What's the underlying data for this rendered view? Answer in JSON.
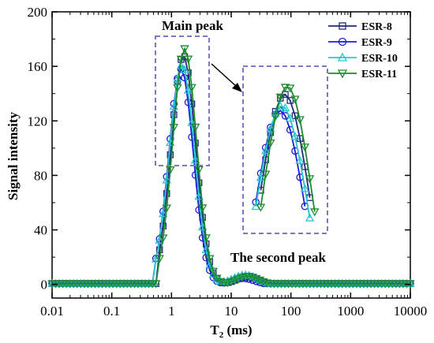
{
  "chart_data": {
    "type": "line",
    "xlabel": "T",
    "xlabel_sub": "2",
    "xlabel_unit": " (ms)",
    "ylabel": "Signal intensity",
    "xscale": "log",
    "xlim": [
      0.01,
      10000
    ],
    "ylim": [
      -10,
      200
    ],
    "xticks": [
      {
        "value": 0.01,
        "label": "0.01"
      },
      {
        "value": 0.1,
        "label": "0.1"
      },
      {
        "value": 1,
        "label": "1"
      },
      {
        "value": 10,
        "label": "10"
      },
      {
        "value": 100,
        "label": "100"
      },
      {
        "value": 1000,
        "label": "1000"
      },
      {
        "value": 10000,
        "label": "10000"
      }
    ],
    "yticks": [
      {
        "value": 0,
        "label": "0"
      },
      {
        "value": 40,
        "label": "40"
      },
      {
        "value": 80,
        "label": "80"
      },
      {
        "value": 120,
        "label": "120"
      },
      {
        "value": 160,
        "label": "160"
      },
      {
        "value": 200,
        "label": "200"
      }
    ],
    "legend_position": "top-right",
    "annotations": {
      "main_peak": "Main peak",
      "second_peak": "The second peak"
    },
    "series": [
      {
        "name": "ESR-8",
        "color": "#1f2a7a",
        "marker": "square",
        "main": {
          "center": 1.58,
          "amp": 168,
          "width": 0.205
        },
        "second": {
          "center": 18,
          "amp": 5.5,
          "width": 0.18
        },
        "onset": 0.57,
        "shift": 0.0
      },
      {
        "name": "ESR-9",
        "color": "#1c1cd6",
        "marker": "circle",
        "main": {
          "center": 1.45,
          "amp": 158,
          "width": 0.205
        },
        "second": {
          "center": 16,
          "amp": 4.5,
          "width": 0.18
        },
        "onset": 0.5,
        "shift": -0.02
      },
      {
        "name": "ESR-10",
        "color": "#28c6d0",
        "marker": "triangle-up",
        "main": {
          "center": 1.5,
          "amp": 161,
          "width": 0.21
        },
        "second": {
          "center": 17,
          "amp": 7,
          "width": 0.2
        },
        "onset": 0.52,
        "shift": -0.01
      },
      {
        "name": "ESR-11",
        "color": "#1e8a2e",
        "marker": "triangle-down",
        "main": {
          "center": 1.66,
          "amp": 173,
          "width": 0.2
        },
        "second": {
          "center": 19,
          "amp": 6,
          "width": 0.18
        },
        "onset": 0.6,
        "shift": 0.01
      }
    ]
  }
}
